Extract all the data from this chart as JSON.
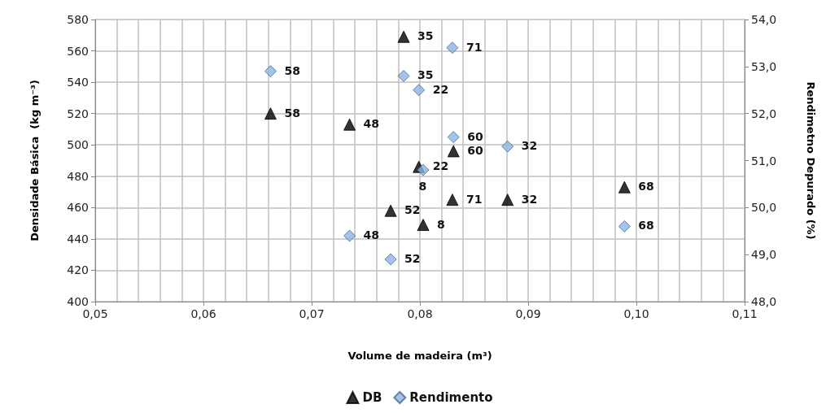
{
  "chart_data": {
    "type": "scatter",
    "xlabel": "Volume de madeira (m³)",
    "ylabel": "Densidade Básica  (kg m⁻³)",
    "y2label": "Rendimetno Depurado (%)",
    "series": [
      {
        "name": "DB",
        "color": "#000000",
        "marker": "triangle",
        "x": [
          0.0785,
          0.0662,
          0.0735,
          0.0831,
          0.0799,
          0.083,
          0.0881,
          0.0773,
          0.0803,
          0.0989
        ],
        "values": [
          569,
          520,
          513,
          496,
          486,
          465,
          465,
          458,
          449,
          473
        ]
      },
      {
        "name": "Rendimento",
        "color": "#8db4e2",
        "marker": "diamond",
        "axis": "y2",
        "x": [
          0.083,
          0.0662,
          0.0785,
          0.0799,
          0.0831,
          0.0881,
          0.0803,
          0.0989,
          0.0735,
          0.0773
        ],
        "values": [
          53.4,
          52.9,
          52.8,
          52.5,
          51.5,
          51.3,
          50.8,
          49.6,
          49.4,
          48.9
        ]
      }
    ],
    "annotations": [
      {
        "text": "35",
        "x": 0.0785,
        "y": 569
      },
      {
        "text": "58",
        "x": 0.0662,
        "y": 520
      },
      {
        "text": "48",
        "x": 0.0735,
        "y": 513
      },
      {
        "text": "60",
        "x": 0.0831,
        "y": 496
      },
      {
        "text": "22",
        "x": 0.0799,
        "y": 486
      },
      {
        "text": "71",
        "x": 0.083,
        "y": 465
      },
      {
        "text": "32",
        "x": 0.0881,
        "y": 465
      },
      {
        "text": "52",
        "x": 0.0773,
        "y": 458
      },
      {
        "text": "8",
        "x": 0.0803,
        "y": 449
      },
      {
        "text": "68",
        "x": 0.0989,
        "y": 473
      },
      {
        "text": "71",
        "x": 0.083,
        "y": 562
      },
      {
        "text": "58",
        "x": 0.0662,
        "y": 547
      },
      {
        "text": "35",
        "x": 0.0785,
        "y": 544
      },
      {
        "text": "22",
        "x": 0.0799,
        "y": 535
      },
      {
        "text": "60",
        "x": 0.0831,
        "y": 505
      },
      {
        "text": "32",
        "x": 0.0881,
        "y": 499
      },
      {
        "text": "8",
        "x": 0.0803,
        "y": 484
      },
      {
        "text": "68",
        "x": 0.0989,
        "y": 448
      },
      {
        "text": "48",
        "x": 0.0735,
        "y": 442
      },
      {
        "text": "52",
        "x": 0.0773,
        "y": 427
      }
    ],
    "xlim": [
      0.05,
      0.11
    ],
    "xticks": [
      {
        "value": 0.05,
        "label": "0,05"
      },
      {
        "value": 0.06,
        "label": "0,06"
      },
      {
        "value": 0.07,
        "label": "0,07"
      },
      {
        "value": 0.08,
        "label": "0,08"
      },
      {
        "value": 0.09,
        "label": "0,09"
      },
      {
        "value": 0.1,
        "label": "0,10"
      },
      {
        "value": 0.11,
        "label": "0,11"
      }
    ],
    "ylim": [
      400,
      580
    ],
    "yticks": [
      400,
      420,
      440,
      460,
      480,
      500,
      520,
      540,
      560,
      580
    ],
    "y2lim": [
      48,
      54
    ],
    "y2ticks": [
      {
        "value": 48,
        "label": "48,0"
      },
      {
        "value": 49,
        "label": "49,0"
      },
      {
        "value": 50,
        "label": "50,0"
      },
      {
        "value": 51,
        "label": "51,0"
      },
      {
        "value": 52,
        "label": "52,0"
      },
      {
        "value": 53,
        "label": "53,0"
      },
      {
        "value": 54,
        "label": "54,0"
      }
    ],
    "grid": true,
    "legend": "bottom"
  }
}
